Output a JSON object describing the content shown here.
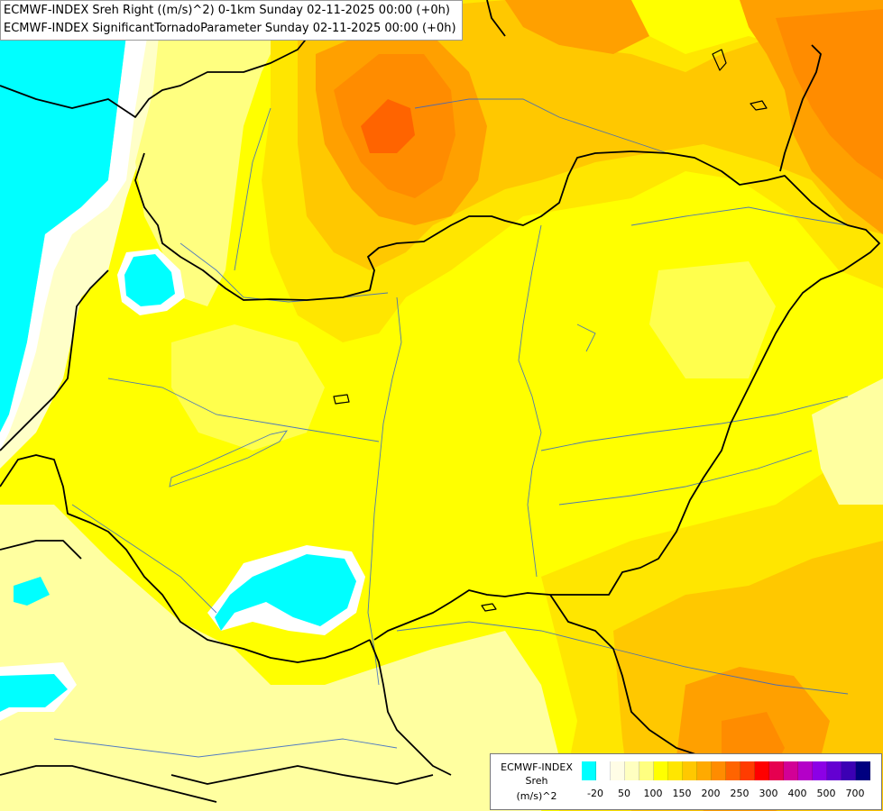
{
  "titles": {
    "line1": "ECMWF-INDEX Sreh Right ((m/s)^2) 0-1km Sunday 02-11-2025 00:00 (+0h)",
    "line2": "ECMWF-INDEX SignificantTornadoParameter Sunday 02-11-2025 00:00 (+0h)"
  },
  "legend": {
    "source": "ECMWF-INDEX",
    "variable": "Sreh",
    "unit": "(m/s)^2",
    "ticks": [
      "-20",
      "50",
      "100",
      "150",
      "200",
      "250",
      "300",
      "400",
      "500",
      "700"
    ],
    "colors": [
      "#00ffff",
      "#ffffff",
      "#fffde6",
      "#ffffc0",
      "#ffff80",
      "#ffff00",
      "#ffe600",
      "#ffc800",
      "#ffaa00",
      "#ff8c00",
      "#ff6400",
      "#ff3c00",
      "#ff0000",
      "#e60050",
      "#d20096",
      "#b400c8",
      "#8c00e6",
      "#6400d2",
      "#3c00b4",
      "#000080"
    ]
  },
  "palette": {
    "cyan": "#00ffff",
    "white": "#ffffff",
    "pale": "#ffffc8",
    "lightyellow": "#ffff80",
    "yellow": "#ffff00",
    "gold": "#ffe000",
    "amber": "#ffc800",
    "orange": "#ffa000",
    "darkorange": "#ff7800",
    "red": "#ff5000",
    "border": "#000000",
    "river": "#3264c8"
  }
}
